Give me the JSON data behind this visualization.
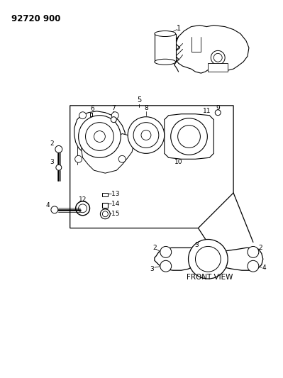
{
  "title": "92720 900",
  "background_color": "#ffffff",
  "text_color": "#000000",
  "fig_width": 3.99,
  "fig_height": 5.33,
  "dpi": 100,
  "label": "FRONT VIEW",
  "line_color": "#000000",
  "fill_color": "#ffffff",
  "lw": 0.7
}
